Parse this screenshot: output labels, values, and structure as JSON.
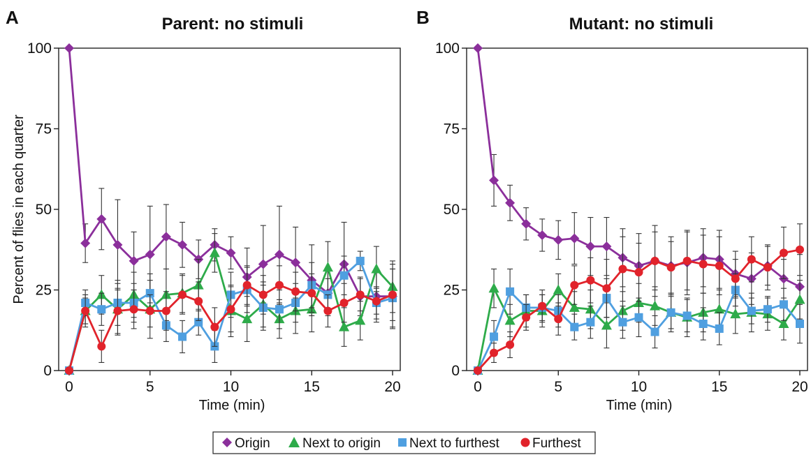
{
  "legend": {
    "items": [
      {
        "label": "Origin",
        "color": "#8b2f9b",
        "marker": "diamond"
      },
      {
        "label": "Next to origin",
        "color": "#2eab4a",
        "marker": "triangle"
      },
      {
        "label": "Next to furthest",
        "color": "#4f9fe0",
        "marker": "square"
      },
      {
        "label": "Furthest",
        "color": "#e1232b",
        "marker": "circle"
      }
    ],
    "placement": "bottom-center"
  },
  "chart_data": [
    {
      "panel": "A",
      "type": "line",
      "title": "Parent: no stimuli",
      "xlabel": "Time (min)",
      "ylabel": "Percent of flies in each quarter",
      "xlim": [
        0,
        20
      ],
      "ylim": [
        0,
        100
      ],
      "xticks": [
        0,
        5,
        10,
        15,
        20
      ],
      "yticks": [
        0,
        25,
        50,
        75,
        100
      ],
      "grid": false,
      "x": [
        0,
        1,
        2,
        3,
        4,
        5,
        6,
        7,
        8,
        9,
        10,
        11,
        12,
        13,
        14,
        15,
        16,
        17,
        18,
        19,
        20
      ],
      "series": [
        {
          "name": "Origin",
          "marker": "diamond",
          "color": "#8b2f9b",
          "values": [
            100,
            39.5,
            47,
            39,
            34,
            36,
            41.5,
            39,
            34.5,
            39,
            36.5,
            29,
            33,
            36,
            33.5,
            28,
            24,
            33,
            23,
            23,
            23
          ],
          "error": [
            0,
            6,
            9.5,
            14,
            9,
            15,
            10,
            7,
            6,
            5,
            5,
            9,
            12,
            15,
            11,
            11,
            7,
            13,
            6,
            8,
            10
          ]
        },
        {
          "name": "Next to origin",
          "marker": "triangle",
          "color": "#2eab4a",
          "values": [
            0,
            18.5,
            23.5,
            19,
            23.5,
            19,
            23.5,
            24,
            26.5,
            36.5,
            18.5,
            16,
            20.5,
            16,
            18.5,
            19,
            32,
            13.5,
            15.5,
            31.5,
            26
          ],
          "error": [
            0,
            5,
            6,
            8,
            7,
            9,
            8,
            6,
            8,
            6,
            8,
            7,
            7,
            6,
            7,
            7,
            8,
            6,
            6,
            7,
            8
          ]
        },
        {
          "name": "Next to furthest",
          "marker": "square",
          "color": "#4f9fe0",
          "values": [
            0,
            21,
            19,
            21,
            21,
            24,
            14,
            10.5,
            15,
            7.5,
            23.5,
            25,
            19.5,
            19,
            21,
            26.5,
            23.5,
            29.5,
            34,
            21,
            22.5
          ],
          "error": [
            0,
            4,
            5,
            7,
            6,
            6,
            5,
            5,
            4,
            5,
            7,
            7,
            7,
            6,
            6,
            7,
            5,
            6,
            3,
            5,
            9
          ]
        },
        {
          "name": "Furthest",
          "marker": "circle",
          "color": "#e1232b",
          "values": [
            0,
            18.5,
            7.5,
            18.5,
            19,
            18.5,
            18.5,
            23.5,
            21.5,
            13.5,
            19,
            26.5,
            23.5,
            26.5,
            24.5,
            24,
            18.5,
            21,
            23.5,
            21.5,
            23.5
          ],
          "error": [
            0,
            4,
            5,
            7,
            6,
            5,
            6,
            6,
            6,
            6,
            7,
            6,
            6,
            6,
            6,
            6,
            5,
            6,
            5,
            4,
            8
          ]
        }
      ]
    },
    {
      "panel": "B",
      "type": "line",
      "title": "Mutant: no stimuli",
      "xlabel": "Time (min)",
      "ylabel": "",
      "xlim": [
        0,
        20
      ],
      "ylim": [
        0,
        100
      ],
      "xticks": [
        0,
        5,
        10,
        15,
        20
      ],
      "yticks": [
        0,
        25,
        50,
        75,
        100
      ],
      "grid": false,
      "x": [
        0,
        1,
        2,
        3,
        4,
        5,
        6,
        7,
        8,
        9,
        10,
        11,
        12,
        13,
        14,
        15,
        16,
        17,
        18,
        19,
        20
      ],
      "series": [
        {
          "name": "Origin",
          "marker": "diamond",
          "color": "#8b2f9b",
          "values": [
            100,
            59,
            52,
            45.5,
            42,
            40.5,
            41,
            38.5,
            38.5,
            35,
            32.5,
            34,
            32.5,
            33.5,
            35,
            34.5,
            30,
            28.5,
            32.5,
            28.5,
            26
          ],
          "error": [
            0,
            8,
            5.5,
            5,
            5,
            6,
            8,
            9,
            9,
            9,
            10,
            11,
            9,
            10,
            9,
            9,
            7,
            8,
            6,
            6,
            10
          ]
        },
        {
          "name": "Next to origin",
          "marker": "triangle",
          "color": "#2eab4a",
          "values": [
            0,
            25.5,
            15.5,
            18.5,
            18.5,
            25,
            19.5,
            19,
            14,
            18.5,
            21,
            20,
            18,
            16.5,
            18,
            19,
            17.5,
            18,
            17.5,
            14.5,
            22
          ],
          "error": [
            0,
            6,
            5,
            5,
            5,
            5,
            5,
            6,
            7,
            6,
            6,
            6,
            6,
            6,
            6,
            6,
            6,
            6,
            5,
            5,
            6
          ]
        },
        {
          "name": "Next to furthest",
          "marker": "square",
          "color": "#4f9fe0",
          "values": [
            0,
            10.5,
            24.5,
            19.5,
            19.5,
            18.5,
            13.5,
            15,
            22.5,
            15,
            16.5,
            12,
            18,
            17,
            14.5,
            13,
            25,
            18.5,
            19,
            20.5,
            14.5
          ],
          "error": [
            0,
            5,
            7,
            4,
            4,
            5,
            4,
            5,
            6,
            5,
            6,
            5,
            5,
            5,
            5,
            5,
            5,
            4,
            4,
            5,
            6
          ]
        },
        {
          "name": "Furthest",
          "marker": "circle",
          "color": "#e1232b",
          "values": [
            0,
            5.5,
            8,
            16.5,
            20,
            16,
            26.5,
            28,
            25.5,
            31.5,
            30.5,
            34,
            32,
            34,
            33,
            32.5,
            28.5,
            34.5,
            32,
            36.5,
            37.5
          ],
          "error": [
            0,
            3,
            4,
            4,
            5,
            5,
            6,
            7,
            9,
            10,
            9,
            9,
            8,
            9,
            9,
            9,
            6,
            7,
            7,
            8,
            8
          ]
        }
      ]
    }
  ]
}
